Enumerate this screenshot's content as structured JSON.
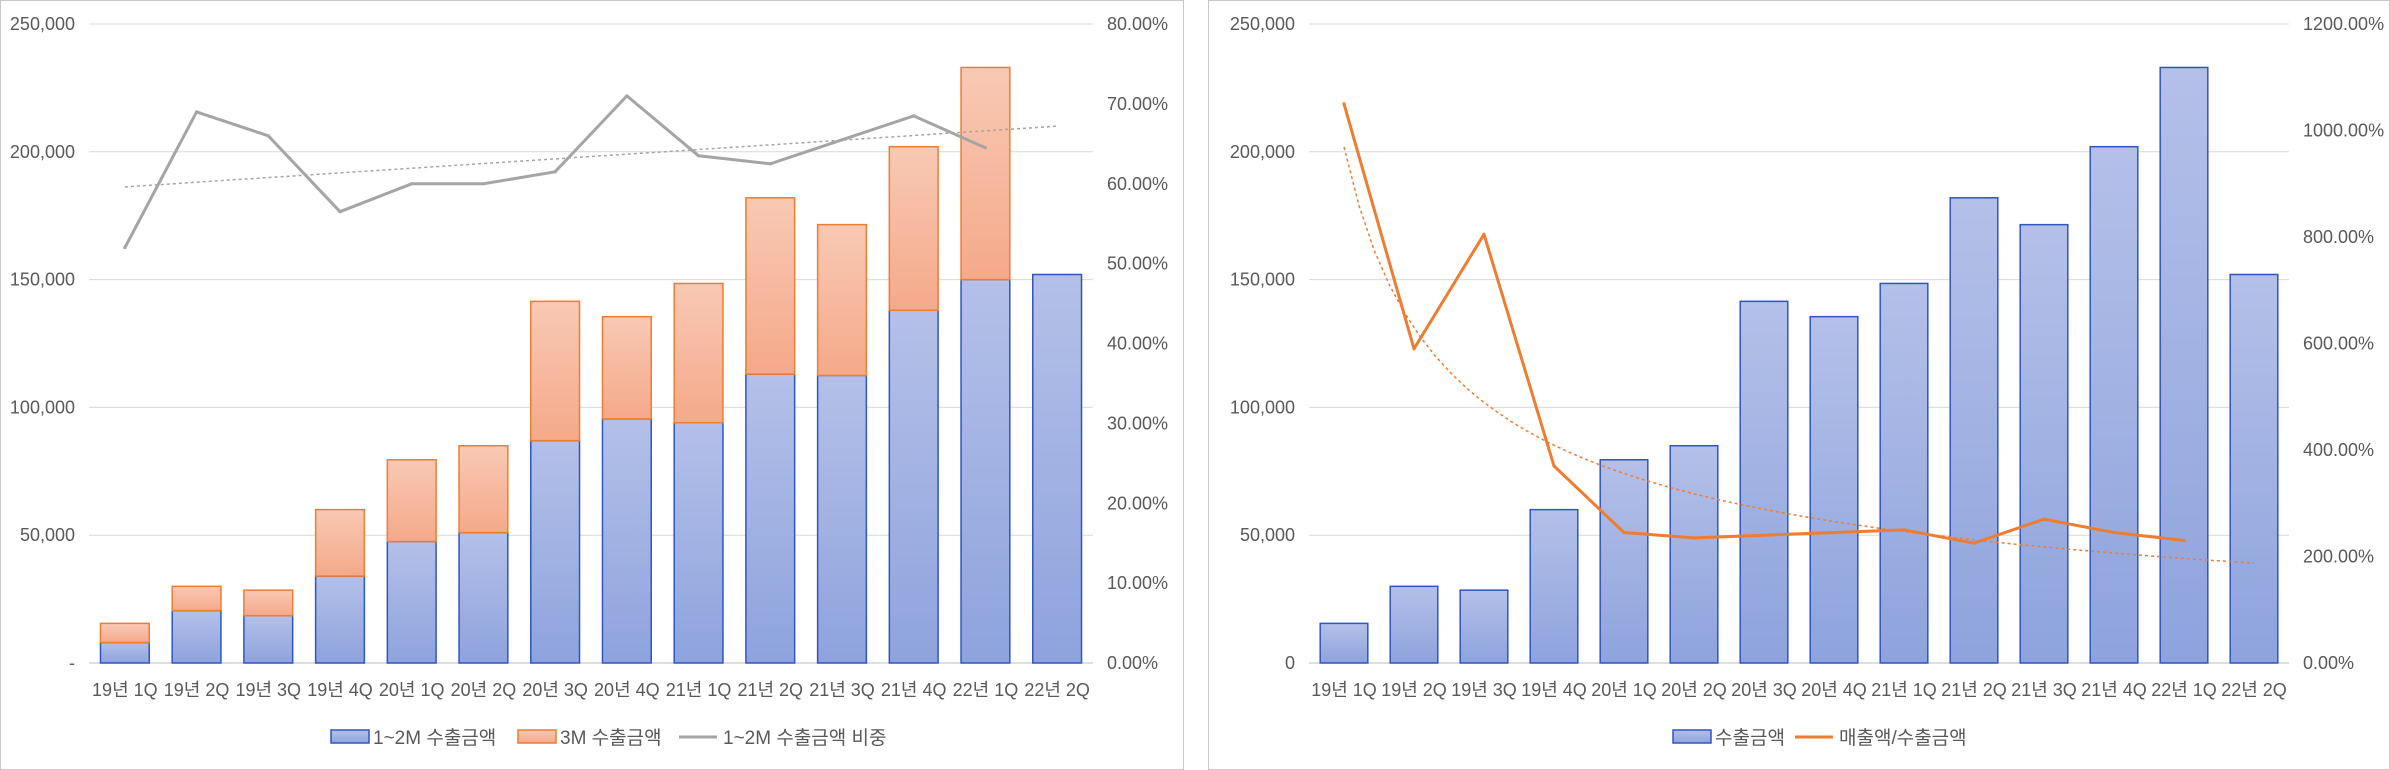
{
  "chart_data": [
    {
      "type": "bar",
      "stacked": true,
      "categories": [
        "19년 1Q",
        "19년 2Q",
        "19년 3Q",
        "19년 4Q",
        "20년 1Q",
        "20년 2Q",
        "20년 3Q",
        "20년 4Q",
        "21년 1Q",
        "21년 2Q",
        "21년 3Q",
        "21년 4Q",
        "22년 1Q",
        "22년 2Q"
      ],
      "series": [
        {
          "name": "1~2M 수출금액",
          "kind": "bar",
          "axis": "left",
          "color": "#8EA3DD",
          "edge": "#2F55C4",
          "values": [
            8000,
            20500,
            18500,
            34000,
            47500,
            51000,
            87000,
            95500,
            94000,
            113000,
            112500,
            138000,
            150000,
            152000
          ]
        },
        {
          "name": "3M 수출금액",
          "kind": "bar",
          "axis": "left",
          "color": "#F5A98A",
          "edge": "#ED7D31",
          "values": [
            7500,
            9500,
            10000,
            26000,
            32000,
            34000,
            54500,
            40000,
            54500,
            69000,
            59000,
            64000,
            83000,
            null
          ]
        },
        {
          "name": "1~2M 수출금액 비중",
          "kind": "line",
          "axis": "right",
          "color": "#A5A5A5",
          "values": [
            0.52,
            0.69,
            0.66,
            0.565,
            0.6,
            0.6,
            0.615,
            0.71,
            0.635,
            0.625,
            0.655,
            0.685,
            0.645,
            null
          ]
        }
      ],
      "trendline": {
        "series": "1~2M 수출금액 비중",
        "type": "linear",
        "color": "#A5A5A5"
      },
      "y_left": {
        "min": 0,
        "max": 250000,
        "ticks": [
          "-",
          "50,000",
          "100,000",
          "150,000",
          "200,000",
          "250,000"
        ]
      },
      "y_right": {
        "min": 0,
        "max": 0.8,
        "ticks": [
          "0.00%",
          "10.00%",
          "20.00%",
          "30.00%",
          "40.00%",
          "50.00%",
          "60.00%",
          "70.00%",
          "80.00%"
        ]
      },
      "grid": true,
      "legend": {
        "position": "bottom",
        "items": [
          "1~2M 수출금액",
          "3M 수출금액",
          "1~2M 수출금액 비중"
        ]
      }
    },
    {
      "type": "bar",
      "categories": [
        "19년 1Q",
        "19년 2Q",
        "19년 3Q",
        "19년 4Q",
        "20년 1Q",
        "20년 2Q",
        "20년 3Q",
        "20년 4Q",
        "21년 1Q",
        "21년 2Q",
        "21년 3Q",
        "21년 4Q",
        "22년 1Q",
        "22년 2Q"
      ],
      "series": [
        {
          "name": "수출금액",
          "kind": "bar",
          "axis": "left",
          "color": "#8EA3DD",
          "edge": "#2F55C4",
          "values": [
            15500,
            30000,
            28500,
            60000,
            79500,
            85000,
            141500,
            135500,
            148500,
            182000,
            171500,
            202000,
            233000,
            152000
          ]
        },
        {
          "name": "매출액/수출금액",
          "kind": "line",
          "axis": "right",
          "color": "#ED7D31",
          "values": [
            10.5,
            5.9,
            8.05,
            3.7,
            2.45,
            2.35,
            2.4,
            2.45,
            2.5,
            2.25,
            2.7,
            2.45,
            2.3,
            null
          ]
        }
      ],
      "trendline": {
        "series": "매출액/수출금액",
        "type": "power",
        "color": "#ED7D31"
      },
      "y_left": {
        "min": 0,
        "max": 250000,
        "ticks": [
          "0",
          "50,000",
          "100,000",
          "150,000",
          "200,000",
          "250,000"
        ]
      },
      "y_right": {
        "min": 0,
        "max": 12,
        "ticks": [
          "0.00%",
          "200.00%",
          "400.00%",
          "600.00%",
          "800.00%",
          "1000.00%",
          "1200.00%"
        ]
      },
      "grid": true,
      "legend": {
        "position": "bottom",
        "items": [
          "수출금액",
          "매출액/수출금액"
        ]
      }
    }
  ]
}
